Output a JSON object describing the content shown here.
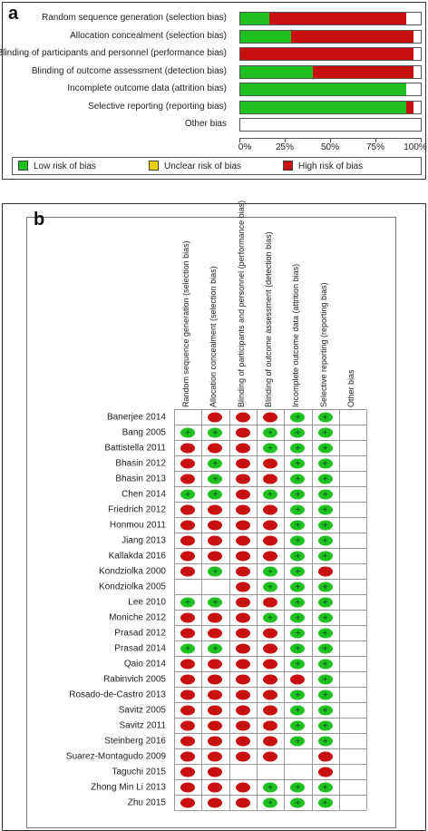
{
  "panel_a": {
    "letter": "a",
    "chart_data": {
      "type": "bar",
      "orientation": "horizontal",
      "stacked": true,
      "categories": [
        "Random sequence generation (selection bias)",
        "Allocation concealment (selection bias)",
        "Blinding of participants and personnel (performance bias)",
        "Blinding of outcome assessment (detection bias)",
        "Incomplete outcome data (attrition bias)",
        "Selective reporting (reporting bias)",
        "Other bias"
      ],
      "series": [
        {
          "name": "Low risk of bias",
          "color": "#20c020",
          "values": [
            16,
            28,
            0,
            40,
            92,
            92,
            0
          ]
        },
        {
          "name": "Unclear risk of bias",
          "color": "#e6d000",
          "values": [
            0,
            0,
            0,
            0,
            0,
            0,
            0
          ]
        },
        {
          "name": "High risk of bias",
          "color": "#c81010",
          "values": [
            76,
            68,
            96,
            56,
            0,
            4,
            0
          ]
        }
      ],
      "xlim": [
        0,
        100
      ],
      "xticks": [
        "0%",
        "25%",
        "50%",
        "75%",
        "100%"
      ],
      "legend": "bottom"
    }
  },
  "panel_b": {
    "letter": "b",
    "chart_data": {
      "type": "table",
      "columns": [
        "Random sequence generation (selection bias)",
        "Allocation concealment (selection bias)",
        "Blinding of participants and personnel (performance bias)",
        "Blinding of outcome assessment (detection bias)",
        "Incomplete outcome data (attrition bias)",
        "Selective reporting (reporting bias)",
        "Other bias"
      ],
      "legend_symbols": {
        "low": "+",
        "high": "",
        "unclear": "?"
      },
      "rows": [
        {
          "study": "Banerjee 2014",
          "ratings": [
            "",
            "high",
            "high",
            "high",
            "low",
            "low",
            ""
          ]
        },
        {
          "study": "Bang 2005",
          "ratings": [
            "low",
            "low",
            "high",
            "low",
            "low",
            "low",
            ""
          ]
        },
        {
          "study": "Battistella 2011",
          "ratings": [
            "high",
            "high",
            "high",
            "low",
            "low",
            "low",
            ""
          ]
        },
        {
          "study": "Bhasin 2012",
          "ratings": [
            "high",
            "low",
            "high",
            "high",
            "low",
            "low",
            ""
          ]
        },
        {
          "study": "Bhasin 2013",
          "ratings": [
            "high",
            "low",
            "high",
            "high",
            "low",
            "low",
            ""
          ]
        },
        {
          "study": "Chen 2014",
          "ratings": [
            "low",
            "low",
            "high",
            "low",
            "low",
            "low",
            ""
          ]
        },
        {
          "study": "Friedrich 2012",
          "ratings": [
            "high",
            "high",
            "high",
            "high",
            "low",
            "low",
            ""
          ]
        },
        {
          "study": "Honmou 2011",
          "ratings": [
            "high",
            "high",
            "high",
            "high",
            "low",
            "low",
            ""
          ]
        },
        {
          "study": "Jiang 2013",
          "ratings": [
            "high",
            "high",
            "high",
            "high",
            "low",
            "low",
            ""
          ]
        },
        {
          "study": "Kallakda 2016",
          "ratings": [
            "high",
            "high",
            "high",
            "high",
            "low",
            "low",
            ""
          ]
        },
        {
          "study": "Kondziolka 2000",
          "ratings": [
            "high",
            "low",
            "high",
            "low",
            "low",
            "high",
            ""
          ]
        },
        {
          "study": "Kondziolka 2005",
          "ratings": [
            "",
            "",
            "high",
            "low",
            "low",
            "low",
            ""
          ]
        },
        {
          "study": "Lee 2010",
          "ratings": [
            "low",
            "low",
            "high",
            "high",
            "low",
            "low",
            ""
          ]
        },
        {
          "study": "Moniche 2012",
          "ratings": [
            "high",
            "high",
            "high",
            "low",
            "low",
            "low",
            ""
          ]
        },
        {
          "study": "Prasad 2012",
          "ratings": [
            "high",
            "high",
            "high",
            "high",
            "low",
            "low",
            ""
          ]
        },
        {
          "study": "Prasad 2014",
          "ratings": [
            "low",
            "low",
            "high",
            "high",
            "low",
            "low",
            ""
          ]
        },
        {
          "study": "Qaio 2014",
          "ratings": [
            "high",
            "high",
            "high",
            "high",
            "low",
            "low",
            ""
          ]
        },
        {
          "study": "Rabinvich 2005",
          "ratings": [
            "high",
            "high",
            "high",
            "high",
            "high",
            "low",
            ""
          ]
        },
        {
          "study": "Rosado-de-Castro 2013",
          "ratings": [
            "high",
            "high",
            "high",
            "high",
            "low",
            "low",
            ""
          ]
        },
        {
          "study": "Savitz 2005",
          "ratings": [
            "high",
            "high",
            "high",
            "high",
            "low",
            "low",
            ""
          ]
        },
        {
          "study": "Savitz 2011",
          "ratings": [
            "high",
            "high",
            "high",
            "high",
            "low",
            "low",
            ""
          ]
        },
        {
          "study": "Steinberg 2016",
          "ratings": [
            "high",
            "high",
            "high",
            "high",
            "low",
            "low",
            ""
          ]
        },
        {
          "study": "Suarez-Montagudo 2009",
          "ratings": [
            "high",
            "high",
            "high",
            "high",
            "",
            "high",
            ""
          ]
        },
        {
          "study": "Taguchi 2015",
          "ratings": [
            "high",
            "high",
            "",
            "",
            "",
            "high",
            ""
          ]
        },
        {
          "study": "Zhong Min Li 2013",
          "ratings": [
            "high",
            "high",
            "high",
            "low",
            "low",
            "low",
            ""
          ]
        },
        {
          "study": "Zhu 2015",
          "ratings": [
            "high",
            "high",
            "high",
            "low",
            "low",
            "low",
            ""
          ]
        }
      ]
    }
  }
}
